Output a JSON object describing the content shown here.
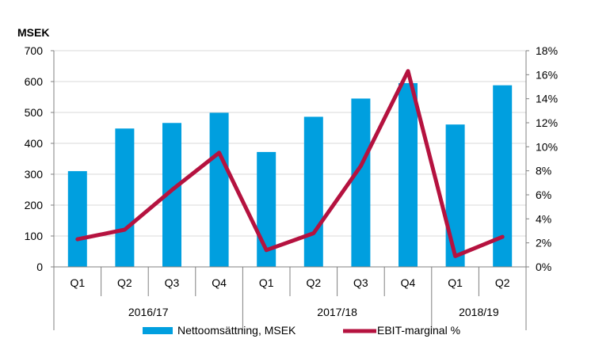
{
  "chart_data": {
    "type": "bar",
    "ylabel": "MSEK",
    "ylim": [
      0,
      700
    ],
    "y_ticks": [
      "0",
      "100",
      "200",
      "300",
      "400",
      "500",
      "600",
      "700"
    ],
    "y2lim": [
      0,
      18
    ],
    "y2_ticks": [
      "0%",
      "2%",
      "4%",
      "6%",
      "8%",
      "10%",
      "12%",
      "14%",
      "16%",
      "18%"
    ],
    "categories": [
      "Q1",
      "Q2",
      "Q3",
      "Q4",
      "Q1",
      "Q2",
      "Q3",
      "Q4",
      "Q1",
      "Q2"
    ],
    "groups": [
      {
        "label": "2016/17",
        "count": 4
      },
      {
        "label": "2017/18",
        "count": 4
      },
      {
        "label": "2018/19",
        "count": 2
      }
    ],
    "series": [
      {
        "name": "Nettoomsättning, MSEK",
        "type": "bar",
        "axis": "left",
        "color": "#009fdf",
        "values": [
          310,
          448,
          466,
          499,
          372,
          486,
          545,
          595,
          461,
          588
        ]
      },
      {
        "name": "EBIT-marginal %",
        "type": "line",
        "axis": "right",
        "color": "#b5123f",
        "values": [
          2.3,
          3.1,
          6.4,
          9.5,
          1.4,
          2.8,
          8.4,
          16.3,
          0.9,
          2.5
        ]
      }
    ],
    "grid": true,
    "legend_position": "bottom"
  }
}
